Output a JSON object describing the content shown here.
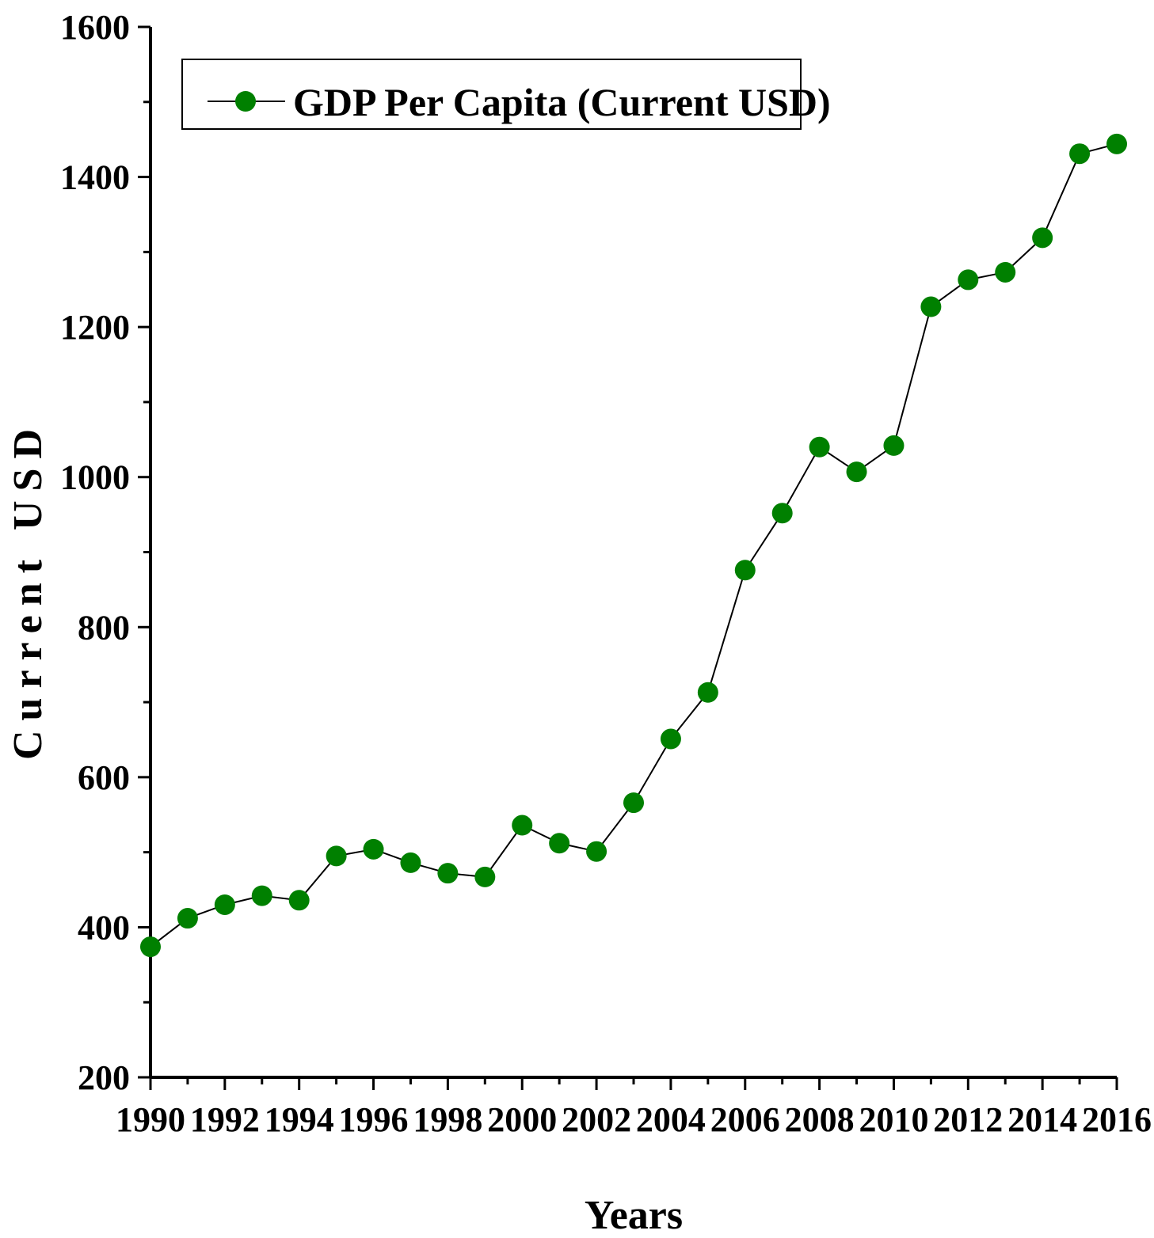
{
  "chart_data": {
    "type": "line",
    "title": "",
    "xlabel": "Years",
    "ylabel": "Current USD",
    "xlim": [
      1990,
      2016
    ],
    "ylim": [
      200,
      1600
    ],
    "x_ticks": [
      "1990",
      "1992",
      "1994",
      "1996",
      "1998",
      "2000",
      "2002",
      "2004",
      "2006",
      "2008",
      "2010",
      "2012",
      "2014",
      "2016"
    ],
    "y_ticks": [
      "200",
      "400",
      "600",
      "800",
      "1000",
      "1200",
      "1400",
      "1600"
    ],
    "legend_position": "top-left",
    "grid": false,
    "series": [
      {
        "name": "GDP Per Capita (Current USD)",
        "color": "#008000",
        "marker": "circle",
        "x": [
          1990,
          1991,
          1992,
          1993,
          1994,
          1995,
          1996,
          1997,
          1998,
          1999,
          2000,
          2001,
          2002,
          2003,
          2004,
          2005,
          2006,
          2007,
          2008,
          2009,
          2010,
          2011,
          2012,
          2013,
          2014,
          2015,
          2016
        ],
        "values": [
          374,
          412,
          430,
          442,
          436,
          495,
          504,
          486,
          472,
          467,
          536,
          512,
          501,
          566,
          651,
          713,
          876,
          952,
          1040,
          1007,
          1042,
          1227,
          1263,
          1273,
          1319,
          1431,
          1444
        ]
      }
    ]
  }
}
